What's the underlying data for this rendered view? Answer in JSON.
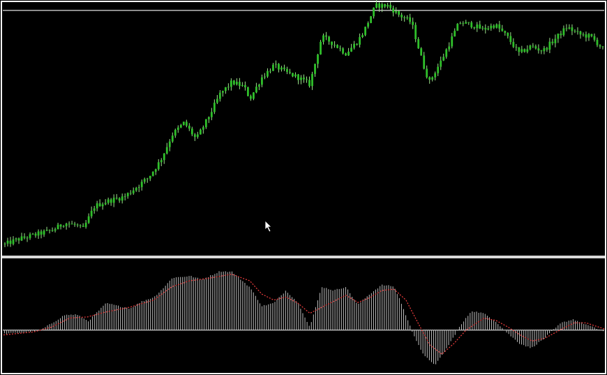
{
  "colors": {
    "background": "#000000",
    "frame": "#ffffff",
    "separator": "#d9d9d9",
    "top_line": "#bdbdbd",
    "price_body": "#2fc02a",
    "price_wick": "#9be08a",
    "histogram": "#bdbdbd",
    "signal": "#e03a3a",
    "zero_line": "#ffffff"
  },
  "icons": {
    "cursor": "mouse-pointer-icon"
  },
  "chart_data": [
    {
      "type": "line",
      "panel": "price",
      "title": "",
      "xlabel": "",
      "ylabel": "",
      "grid": false,
      "ylim": [
        0,
        100
      ],
      "reference_line": 98,
      "keypoints": [
        [
          0,
          0
        ],
        [
          0.02,
          2
        ],
        [
          0.05,
          4
        ],
        [
          0.08,
          6
        ],
        [
          0.1,
          9
        ],
        [
          0.12,
          8
        ],
        [
          0.13,
          6
        ],
        [
          0.15,
          16
        ],
        [
          0.17,
          18
        ],
        [
          0.2,
          20
        ],
        [
          0.22,
          24
        ],
        [
          0.24,
          28
        ],
        [
          0.26,
          35
        ],
        [
          0.28,
          46
        ],
        [
          0.3,
          51
        ],
        [
          0.32,
          44
        ],
        [
          0.34,
          53
        ],
        [
          0.36,
          63
        ],
        [
          0.38,
          68
        ],
        [
          0.4,
          66
        ],
        [
          0.41,
          61
        ],
        [
          0.43,
          70
        ],
        [
          0.45,
          75
        ],
        [
          0.47,
          72
        ],
        [
          0.49,
          70
        ],
        [
          0.51,
          67
        ],
        [
          0.53,
          87
        ],
        [
          0.55,
          84
        ],
        [
          0.57,
          80
        ],
        [
          0.59,
          85
        ],
        [
          0.6,
          89
        ],
        [
          0.62,
          100
        ],
        [
          0.64,
          100
        ],
        [
          0.66,
          96
        ],
        [
          0.68,
          93
        ],
        [
          0.7,
          75
        ],
        [
          0.71,
          68
        ],
        [
          0.73,
          77
        ],
        [
          0.76,
          93
        ],
        [
          0.78,
          92
        ],
        [
          0.8,
          90
        ],
        [
          0.82,
          92
        ],
        [
          0.84,
          87
        ],
        [
          0.86,
          80
        ],
        [
          0.88,
          83
        ],
        [
          0.9,
          81
        ],
        [
          0.92,
          86
        ],
        [
          0.94,
          91
        ],
        [
          0.96,
          88
        ],
        [
          0.98,
          87
        ],
        [
          1.0,
          82
        ]
      ]
    },
    {
      "type": "bar",
      "panel": "oscillator",
      "title": "",
      "xlabel": "",
      "ylabel": "",
      "grid": false,
      "ylim": [
        -70,
        110
      ],
      "histogram_keypoints": [
        [
          0,
          -6
        ],
        [
          0.03,
          -4
        ],
        [
          0.06,
          0
        ],
        [
          0.08,
          12
        ],
        [
          0.1,
          25
        ],
        [
          0.12,
          26
        ],
        [
          0.14,
          15
        ],
        [
          0.17,
          45
        ],
        [
          0.19,
          40
        ],
        [
          0.21,
          36
        ],
        [
          0.23,
          48
        ],
        [
          0.25,
          55
        ],
        [
          0.27,
          75
        ],
        [
          0.28,
          87
        ],
        [
          0.31,
          90
        ],
        [
          0.33,
          84
        ],
        [
          0.36,
          98
        ],
        [
          0.38,
          97
        ],
        [
          0.41,
          71
        ],
        [
          0.43,
          40
        ],
        [
          0.45,
          45
        ],
        [
          0.47,
          66
        ],
        [
          0.49,
          46
        ],
        [
          0.51,
          5
        ],
        [
          0.53,
          72
        ],
        [
          0.55,
          66
        ],
        [
          0.57,
          72
        ],
        [
          0.59,
          42
        ],
        [
          0.61,
          60
        ],
        [
          0.63,
          75
        ],
        [
          0.65,
          73
        ],
        [
          0.66,
          52
        ],
        [
          0.68,
          0
        ],
        [
          0.7,
          -42
        ],
        [
          0.72,
          -58
        ],
        [
          0.74,
          -28
        ],
        [
          0.76,
          5
        ],
        [
          0.78,
          32
        ],
        [
          0.8,
          28
        ],
        [
          0.82,
          15
        ],
        [
          0.84,
          -5
        ],
        [
          0.86,
          -22
        ],
        [
          0.88,
          -30
        ],
        [
          0.9,
          -15
        ],
        [
          0.93,
          12
        ],
        [
          0.95,
          18
        ],
        [
          0.97,
          10
        ],
        [
          1.0,
          -2
        ]
      ],
      "signal_keypoints": [
        [
          0,
          -8
        ],
        [
          0.05,
          -3
        ],
        [
          0.08,
          5
        ],
        [
          0.11,
          20
        ],
        [
          0.14,
          22
        ],
        [
          0.17,
          30
        ],
        [
          0.21,
          38
        ],
        [
          0.25,
          50
        ],
        [
          0.28,
          72
        ],
        [
          0.31,
          82
        ],
        [
          0.34,
          86
        ],
        [
          0.38,
          93
        ],
        [
          0.41,
          82
        ],
        [
          0.43,
          60
        ],
        [
          0.45,
          50
        ],
        [
          0.47,
          55
        ],
        [
          0.49,
          45
        ],
        [
          0.51,
          28
        ],
        [
          0.53,
          38
        ],
        [
          0.55,
          48
        ],
        [
          0.57,
          58
        ],
        [
          0.59,
          46
        ],
        [
          0.61,
          54
        ],
        [
          0.63,
          66
        ],
        [
          0.65,
          68
        ],
        [
          0.67,
          50
        ],
        [
          0.69,
          12
        ],
        [
          0.71,
          -25
        ],
        [
          0.73,
          -40
        ],
        [
          0.75,
          -22
        ],
        [
          0.77,
          0
        ],
        [
          0.8,
          20
        ],
        [
          0.82,
          16
        ],
        [
          0.84,
          5
        ],
        [
          0.86,
          -8
        ],
        [
          0.88,
          -18
        ],
        [
          0.9,
          -14
        ],
        [
          0.93,
          2
        ],
        [
          0.95,
          12
        ],
        [
          0.97,
          12
        ],
        [
          1.0,
          2
        ]
      ]
    }
  ]
}
